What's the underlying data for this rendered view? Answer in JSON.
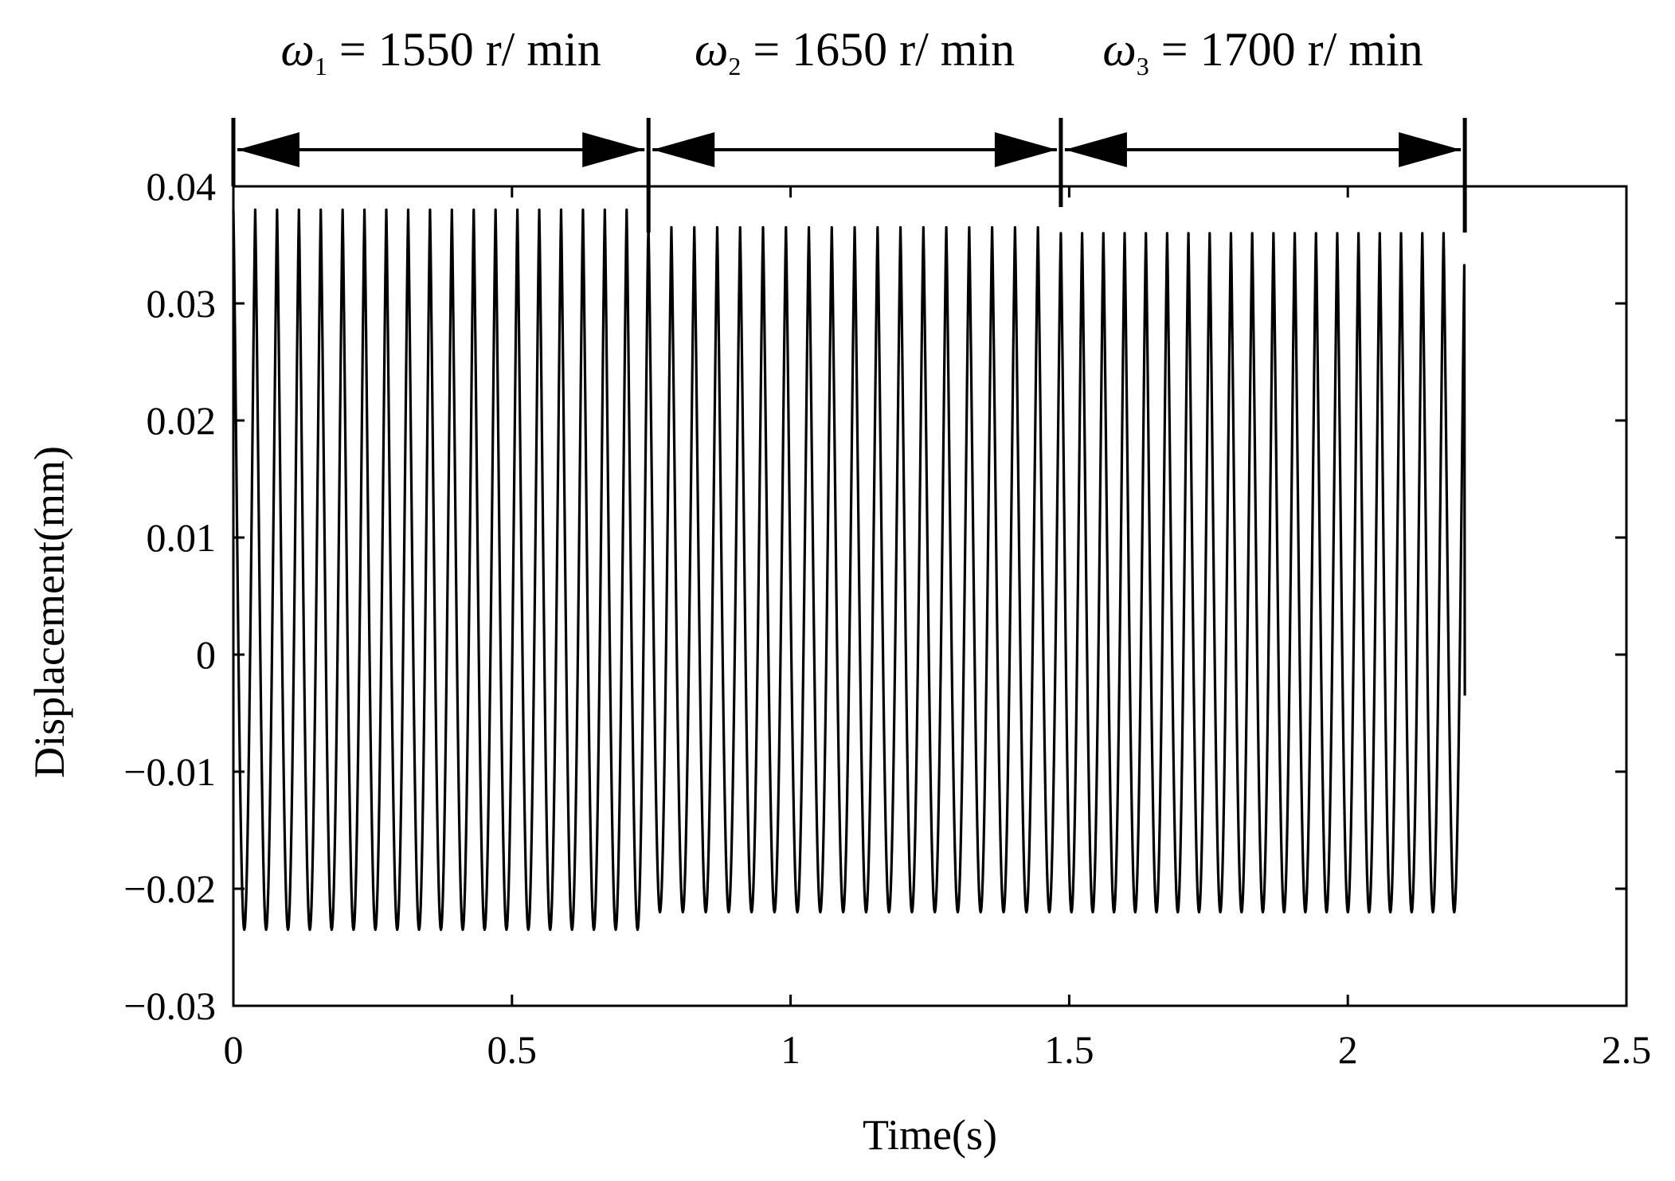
{
  "chart_data": {
    "type": "line",
    "title": "",
    "xlabel": "Time(s)",
    "ylabel": "Displacement(mm)",
    "xlim": [
      0,
      2.5
    ],
    "ylim": [
      -0.03,
      0.04
    ],
    "xticks": [
      0,
      0.5,
      1,
      1.5,
      2,
      2.5
    ],
    "xtick_labels": [
      "0",
      "0.5",
      "1",
      "1.5",
      "2",
      "2.5"
    ],
    "yticks": [
      0.04,
      0.03,
      0.02,
      0.01,
      0,
      -0.01,
      -0.02,
      -0.03
    ],
    "ytick_labels": [
      "0.04",
      "0.03",
      "0.02",
      "0.01",
      "0",
      "−0.01",
      "−0.02",
      "−0.03"
    ],
    "grid": false,
    "line_color": "#000000",
    "series": [
      {
        "segments": [
          {
            "t_start": 0.0,
            "t_end": 0.745,
            "cycles": 19,
            "max": 0.038,
            "min": -0.0235
          },
          {
            "t_start": 0.745,
            "t_end": 1.485,
            "cycles": 18,
            "max": 0.0365,
            "min": -0.022
          },
          {
            "t_start": 1.485,
            "t_end": 2.21,
            "cycles": 19,
            "max": 0.036,
            "min": -0.022
          }
        ],
        "end_value": -0.0035
      }
    ],
    "annotations": [
      {
        "symbol": "ω",
        "subscript": "1",
        "text": "= 1550 r/ min",
        "t_start": 0.0,
        "t_end": 0.745
      },
      {
        "symbol": "ω",
        "subscript": "2",
        "text": "= 1650 r/ min",
        "t_start": 0.745,
        "t_end": 1.485
      },
      {
        "symbol": "ω",
        "subscript": "3",
        "text": "= 1700 r/ min",
        "t_start": 1.485,
        "t_end": 2.21
      }
    ]
  }
}
